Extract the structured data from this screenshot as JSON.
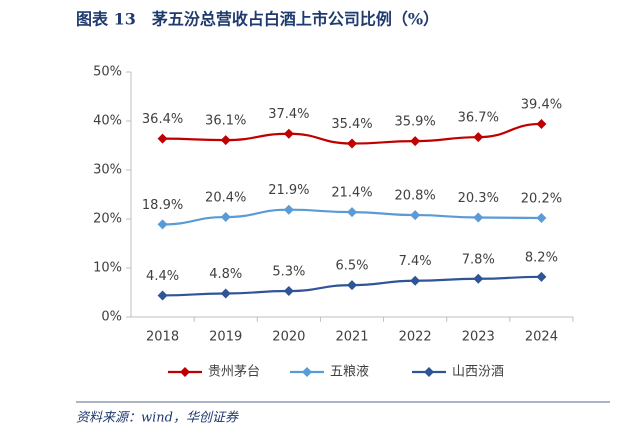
{
  "chart_data": {
    "type": "line",
    "title": "图表 13　茅五汾总营收占白酒上市公司比例（%）",
    "source": "资料来源：wind，华创证券",
    "categories": [
      "2018",
      "2019",
      "2020",
      "2021",
      "2022",
      "2023",
      "2024"
    ],
    "series": [
      {
        "name": "贵州茅台",
        "color": "#c00000",
        "values": [
          36.4,
          36.1,
          37.4,
          35.4,
          35.9,
          36.7,
          39.4
        ],
        "value_labels": [
          "36.4%",
          "36.1%",
          "37.4%",
          "35.4%",
          "35.9%",
          "36.7%",
          "39.4%"
        ]
      },
      {
        "name": "五粮液",
        "color": "#5b9bd5",
        "values": [
          18.9,
          20.4,
          21.9,
          21.4,
          20.8,
          20.3,
          20.2
        ],
        "value_labels": [
          "18.9%",
          "20.4%",
          "21.9%",
          "21.4%",
          "20.8%",
          "20.3%",
          "20.2%"
        ]
      },
      {
        "name": "山西汾酒",
        "color": "#2f5597",
        "values": [
          4.4,
          4.8,
          5.3,
          6.5,
          7.4,
          7.8,
          8.2
        ],
        "value_labels": [
          "4.4%",
          "4.8%",
          "5.3%",
          "6.5%",
          "7.4%",
          "7.8%",
          "8.2%"
        ]
      }
    ],
    "ylim": [
      0,
      50
    ],
    "yticks": [
      {
        "value": 0,
        "label": "0%"
      },
      {
        "value": 10,
        "label": "10%"
      },
      {
        "value": 20,
        "label": "20%"
      },
      {
        "value": 30,
        "label": "30%"
      },
      {
        "value": 40,
        "label": "40%"
      },
      {
        "value": 50,
        "label": "50%"
      }
    ],
    "grid": false,
    "legend": "bottom"
  }
}
